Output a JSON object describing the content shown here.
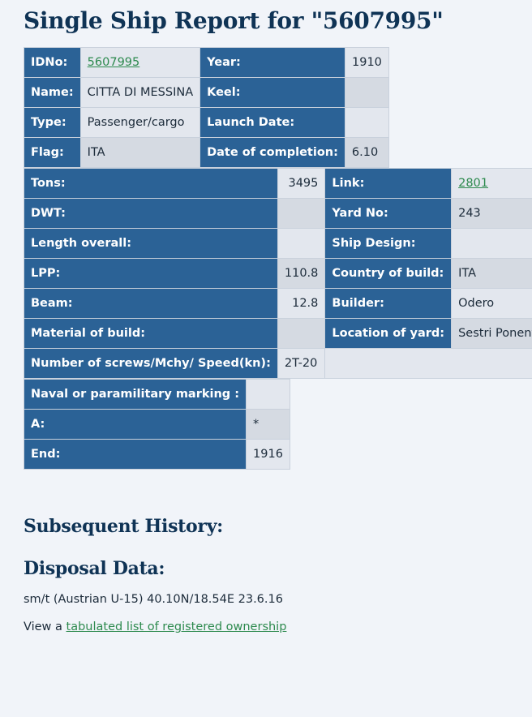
{
  "title": "Single Ship Report for \"5607995\"",
  "table1": {
    "idno_label": "IDNo:",
    "idno_value": "5607995",
    "year_label": "Year:",
    "year_value": "1910",
    "name_label": "Name:",
    "name_value": "CITTA DI MESSINA",
    "keel_label": "Keel:",
    "keel_value": "",
    "type_label": "Type:",
    "type_value": "Passenger/cargo",
    "launch_label": "Launch Date:",
    "launch_value": "",
    "flag_label": "Flag:",
    "flag_value": "ITA",
    "completion_label": "Date of completion:",
    "completion_value": "6.10"
  },
  "table2": {
    "tons_label": "Tons:",
    "tons_value": "3495",
    "link_label": "Link:",
    "link_value": "2801",
    "dwt_label": "DWT:",
    "dwt_value": "",
    "yard_label": "Yard No:",
    "yard_value": "243",
    "length_label": "Length overall:",
    "length_value": "",
    "design_label": "Ship Design:",
    "design_value": "",
    "lpp_label": "LPP:",
    "lpp_value": "110.8",
    "country_label": "Country of build:",
    "country_value": "ITA",
    "beam_label": "Beam:",
    "beam_value": "12.8",
    "builder_label": "Builder:",
    "builder_value": "Odero",
    "material_label": "Material of build:",
    "material_value": "",
    "location_label": "Location of yard:",
    "location_value": "Sestri Ponente",
    "screws_label": "Number of screws/Mchy/ Speed(kn):",
    "screws_value": "2T-20"
  },
  "table3": {
    "naval_label": "Naval or paramilitary marking :",
    "naval_value": "",
    "a_label": "A:",
    "a_value": "*",
    "end_label": "End:",
    "end_value": "1916"
  },
  "history_heading": "Subsequent History:",
  "disposal_heading": "Disposal Data:",
  "disposal_text": "sm/t (Austrian U-15) 40.10N/18.54E 23.6.16",
  "ownership_prefix": "View a ",
  "ownership_link": "tabulated list of registered ownership"
}
